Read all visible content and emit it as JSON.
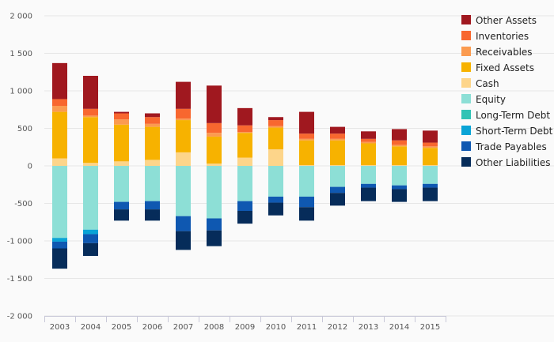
{
  "chart_data": {
    "type": "bar",
    "stacked": true,
    "categories": [
      "2003",
      "2004",
      "2005",
      "2006",
      "2007",
      "2008",
      "2009",
      "2010",
      "2011",
      "2012",
      "2013",
      "2014",
      "2015"
    ],
    "ylim": [
      -2000,
      2000
    ],
    "yticks": [
      2000,
      1500,
      1000,
      500,
      0,
      -500,
      -1000,
      -1500,
      -2000
    ],
    "ytick_labels": [
      "2 000",
      "1 500",
      "1 000",
      "500",
      "0",
      "-500",
      "-1 000",
      "-1 500",
      "-2 000"
    ],
    "grid": true,
    "legend_position": "right",
    "series": [
      {
        "name": "Cash",
        "color": "#fdd58a",
        "values": [
          100,
          40,
          60,
          80,
          180,
          30,
          110,
          220,
          10,
          10,
          10,
          10,
          10
        ]
      },
      {
        "name": "Fixed Assets",
        "color": "#f7b200",
        "values": [
          620,
          610,
          490,
          440,
          430,
          360,
          330,
          290,
          330,
          330,
          290,
          250,
          230
        ]
      },
      {
        "name": "Receivables",
        "color": "#fb9b50",
        "values": [
          80,
          20,
          70,
          40,
          20,
          50,
          10,
          20,
          20,
          20,
          20,
          20,
          20
        ]
      },
      {
        "name": "Inventories",
        "color": "#f8672f",
        "values": [
          90,
          90,
          80,
          90,
          130,
          130,
          90,
          80,
          70,
          70,
          40,
          60,
          50
        ]
      },
      {
        "name": "Other Assets",
        "color": "#a0181f",
        "values": [
          480,
          440,
          20,
          50,
          360,
          500,
          230,
          40,
          290,
          90,
          100,
          150,
          160
        ]
      },
      {
        "name": "Equity",
        "color": "#8ddfd6",
        "values": [
          -960,
          -850,
          -480,
          -470,
          -670,
          -700,
          -470,
          -410,
          -410,
          -280,
          -240,
          -260,
          -240
        ]
      },
      {
        "name": "Long-Term Debt",
        "color": "#31c3b5",
        "values": [
          0,
          0,
          0,
          0,
          0,
          0,
          0,
          0,
          0,
          0,
          0,
          0,
          0
        ]
      },
      {
        "name": "Short-Term Debt",
        "color": "#0aa4d6",
        "values": [
          -50,
          -60,
          0,
          0,
          0,
          0,
          0,
          0,
          0,
          0,
          0,
          0,
          0
        ]
      },
      {
        "name": "Trade Payables",
        "color": "#0f58b1",
        "values": [
          -90,
          -120,
          -100,
          -110,
          -200,
          -160,
          -130,
          -80,
          -140,
          -80,
          -50,
          -50,
          -50
        ]
      },
      {
        "name": "Other Liabilities",
        "color": "#062c5a",
        "values": [
          -270,
          -170,
          -150,
          -150,
          -250,
          -210,
          -170,
          -170,
          -180,
          -170,
          -180,
          -170,
          -180
        ]
      }
    ],
    "legend_order": [
      "Other Assets",
      "Inventories",
      "Receivables",
      "Fixed Assets",
      "Cash",
      "Equity",
      "Long-Term Debt",
      "Short-Term Debt",
      "Trade Payables",
      "Other Liabilities"
    ]
  }
}
